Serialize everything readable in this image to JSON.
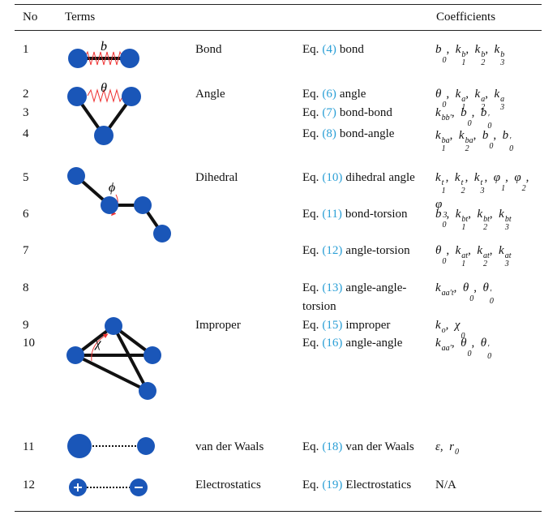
{
  "header": {
    "no": "No",
    "terms": "Terms",
    "coefficients": "Coefficients"
  },
  "diagram_labels": [
    "b",
    "θ",
    "ϕ",
    "χ"
  ],
  "separator": ", ",
  "rows": [
    {
      "no": "1",
      "term": "Bond",
      "eq": {
        "prefix": "Eq.",
        "ref": "(4)",
        "text": "bond"
      },
      "coefficients": [
        {
          "b": "b",
          "sub": "0"
        },
        {
          "b": "k",
          "sub": "1",
          "sup": "b"
        },
        {
          "b": "k",
          "sub": "2",
          "sup": "b"
        },
        {
          "b": "k",
          "sub": "3",
          "sup": "b"
        }
      ]
    },
    {
      "no": "2",
      "term": "Angle",
      "eq": {
        "prefix": "Eq.",
        "ref": "(6)",
        "text": "angle"
      },
      "coefficients": [
        {
          "b": "θ",
          "sub": "0"
        },
        {
          "b": "k",
          "sub": "1",
          "sup": "a"
        },
        {
          "b": "k",
          "sub": "2",
          "sup": "a"
        },
        {
          "b": "k",
          "sub": "3",
          "sup": "a"
        }
      ]
    },
    {
      "no": "3",
      "eq": {
        "prefix": "Eq.",
        "ref": "(7)",
        "text": "bond-bond"
      },
      "coefficients": [
        {
          "b": "k",
          "sup": "bb′"
        },
        {
          "b": "b",
          "sub": "0"
        },
        {
          "b": "b",
          "sub": "0",
          "sup": "′"
        }
      ]
    },
    {
      "no": "4",
      "eq": {
        "prefix": "Eq.",
        "ref": "(8)",
        "text": "bond-angle"
      },
      "coefficients": [
        {
          "b": "k",
          "sub": "1",
          "sup": "ba"
        },
        {
          "b": "k",
          "sub": "2",
          "sup": "ba"
        },
        {
          "b": "b",
          "sub": "0"
        },
        {
          "b": "b",
          "sub": "0",
          "sup": "′"
        }
      ]
    },
    {
      "no": "5",
      "term": "Dihedral",
      "eq": {
        "prefix": "Eq.",
        "ref": "(10)",
        "text": "dihedral angle"
      },
      "coefficients": [
        {
          "b": "k",
          "sub": "1",
          "sup": "t"
        },
        {
          "b": "k",
          "sub": "2",
          "sup": "t"
        },
        {
          "b": "k",
          "sub": "3",
          "sup": "t"
        },
        {
          "b": "φ",
          "sub": "1"
        },
        {
          "b": "φ",
          "sub": "2"
        },
        {
          "b": "φ",
          "sub": "3"
        }
      ]
    },
    {
      "no": "6",
      "eq": {
        "prefix": "Eq.",
        "ref": "(11)",
        "text": "bond-torsion"
      },
      "coefficients": [
        {
          "b": "b",
          "sub": "0"
        },
        {
          "b": "k",
          "sub": "1",
          "sup": "bt"
        },
        {
          "b": "k",
          "sub": "2",
          "sup": "bt"
        },
        {
          "b": "k",
          "sub": "3",
          "sup": "bt"
        }
      ]
    },
    {
      "no": "7",
      "eq": {
        "prefix": "Eq.",
        "ref": "(12)",
        "text": "angle-torsion"
      },
      "coefficients": [
        {
          "b": "θ",
          "sub": "0"
        },
        {
          "b": "k",
          "sub": "1",
          "sup": "at"
        },
        {
          "b": "k",
          "sub": "2",
          "sup": "at"
        },
        {
          "b": "k",
          "sub": "3",
          "sup": "at"
        }
      ]
    },
    {
      "no": "8",
      "eq": {
        "prefix": "Eq.",
        "ref": "(13)",
        "text": "angle-angle-torsion"
      },
      "coefficients": [
        {
          "b": "k",
          "sup": "aa′t"
        },
        {
          "b": "θ",
          "sub": "0"
        },
        {
          "b": "θ",
          "sub": "0",
          "sup": "′"
        }
      ]
    },
    {
      "no": "9",
      "term": "Improper",
      "eq": {
        "prefix": "Eq.",
        "ref": "(15)",
        "text": "improper"
      },
      "coefficients": [
        {
          "b": "k",
          "sup": "o"
        },
        {
          "b": "χ",
          "sub": "0"
        }
      ]
    },
    {
      "no": "10",
      "eq": {
        "prefix": "Eq.",
        "ref": "(16)",
        "text": "angle-angle"
      },
      "coefficients": [
        {
          "b": "k",
          "sup": "aa′"
        },
        {
          "b": "θ",
          "sub": "0"
        },
        {
          "b": "θ",
          "sub": "0",
          "sup": "′"
        }
      ]
    },
    {
      "no": "11",
      "term": "van der Waals",
      "eq": {
        "prefix": "Eq.",
        "ref": "(18)",
        "text": "van der Waals"
      },
      "coefficients": [
        {
          "b": "ε"
        },
        {
          "b": "r",
          "sup": "0"
        }
      ]
    },
    {
      "no": "12",
      "term": "Electrostatics",
      "eq": {
        "prefix": "Eq.",
        "ref": "(19)",
        "text": "Electrostatics"
      },
      "coefficients": [
        {
          "b": "N/A",
          "plain": true
        }
      ]
    }
  ]
}
